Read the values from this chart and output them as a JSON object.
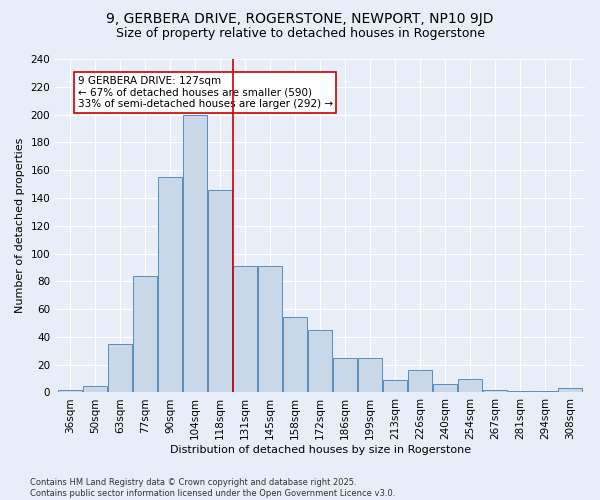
{
  "title": "9, GERBERA DRIVE, ROGERSTONE, NEWPORT, NP10 9JD",
  "subtitle": "Size of property relative to detached houses in Rogerstone",
  "xlabel": "Distribution of detached houses by size in Rogerstone",
  "ylabel": "Number of detached properties",
  "categories": [
    "36sqm",
    "50sqm",
    "63sqm",
    "77sqm",
    "90sqm",
    "104sqm",
    "118sqm",
    "131sqm",
    "145sqm",
    "158sqm",
    "172sqm",
    "186sqm",
    "199sqm",
    "213sqm",
    "226sqm",
    "240sqm",
    "254sqm",
    "267sqm",
    "281sqm",
    "294sqm",
    "308sqm"
  ],
  "values": [
    2,
    5,
    35,
    84,
    155,
    200,
    146,
    91,
    91,
    54,
    45,
    25,
    25,
    9,
    16,
    6,
    10,
    2,
    1,
    1,
    3
  ],
  "bar_color": "#c8d8e8",
  "bar_edge_color": "#5b8db8",
  "vline_color": "#cc0000",
  "annotation_text": "9 GERBERA DRIVE: 127sqm\n← 67% of detached houses are smaller (590)\n33% of semi-detached houses are larger (292) →",
  "annotation_box_color": "#ffffff",
  "annotation_box_edge": "#cc0000",
  "bg_color": "#e8eef8",
  "grid_color": "#ffffff",
  "footer": "Contains HM Land Registry data © Crown copyright and database right 2025.\nContains public sector information licensed under the Open Government Licence v3.0.",
  "ylim": [
    0,
    240
  ],
  "title_fontsize": 10,
  "subtitle_fontsize": 9,
  "axis_fontsize": 8,
  "tick_fontsize": 7.5,
  "annotation_fontsize": 7.5,
  "footer_fontsize": 6
}
